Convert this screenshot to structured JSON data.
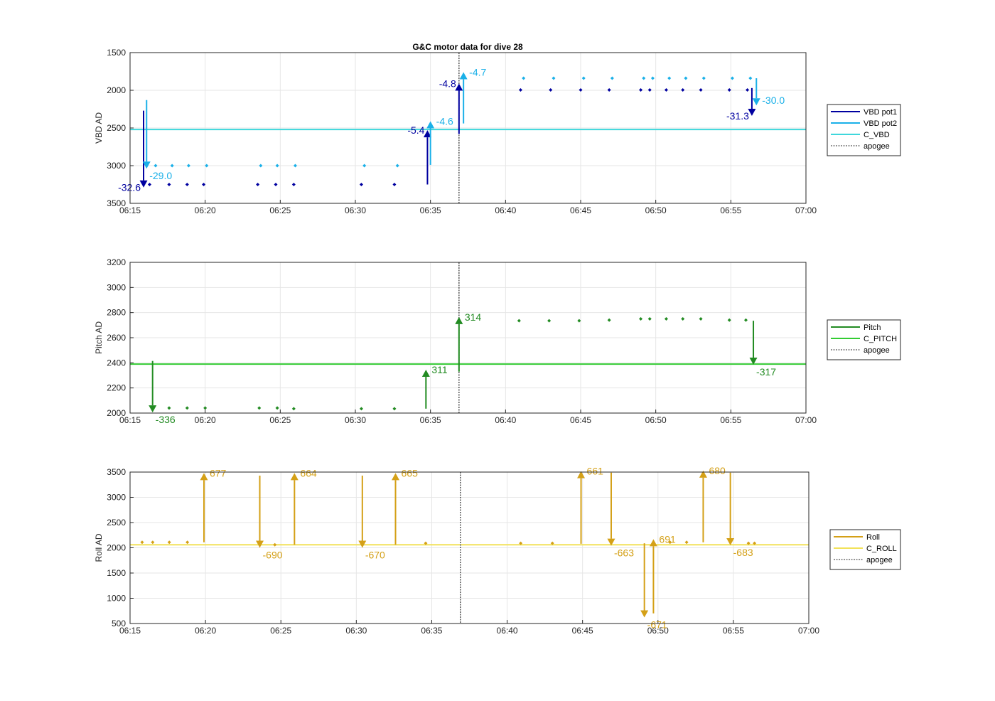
{
  "figure_title": "G&C motor data for dive 28",
  "colors": {
    "vbd_pot1": "#0000a0",
    "vbd_pot2": "#1ab0e8",
    "c_vbd": "#3fd7dc",
    "pitch": "#228b22",
    "c_pitch": "#33cc33",
    "roll": "#d4a017",
    "c_roll": "#f2e25a",
    "apogee": "#555555",
    "grid": "#e6e6e6"
  },
  "chart_data": [
    {
      "type": "line",
      "title": "G&C motor data for dive 28",
      "ylabel": "VBD AD",
      "xlabel": "",
      "ylim": [
        1500,
        3500
      ],
      "y_reversed": true,
      "yticks": [
        1500,
        2000,
        2500,
        3000,
        3500
      ],
      "xlim": [
        "06:15",
        "07:00"
      ],
      "xticks": [
        "06:15",
        "06:20",
        "06:25",
        "06:30",
        "06:35",
        "06:40",
        "06:45",
        "06:50",
        "06:55",
        "07:00"
      ],
      "grid": true,
      "legend_position": "right",
      "legend": [
        "VBD pot1",
        "VBD pot2",
        "C_VBD",
        "apogee"
      ],
      "apogee_time": "06:36.9",
      "series": [
        {
          "name": "VBD pot1",
          "style": "points",
          "color_key": "vbd_pot1",
          "x": [
            "06:16.3",
            "06:17.6",
            "06:18.8",
            "06:19.9",
            "06:23.5",
            "06:24.7",
            "06:25.9",
            "06:30.4",
            "06:32.6",
            "06:41.0",
            "06:43.0",
            "06:45.0",
            "06:46.9",
            "06:49.0",
            "06:49.6",
            "06:50.7",
            "06:51.8",
            "06:53.0",
            "06:54.9",
            "06:56.1"
          ],
          "y": [
            3250,
            3250,
            3250,
            3250,
            3250,
            3250,
            3250,
            3250,
            3250,
            1995,
            1995,
            1995,
            1995,
            1995,
            1995,
            1995,
            1995,
            1995,
            1995,
            1995
          ]
        },
        {
          "name": "VBD pot2",
          "style": "points",
          "color_key": "vbd_pot2",
          "x": [
            "06:16.7",
            "06:17.8",
            "06:18.9",
            "06:20.1",
            "06:23.7",
            "06:24.8",
            "06:26.0",
            "06:30.6",
            "06:32.8",
            "06:41.2",
            "06:43.2",
            "06:45.2",
            "06:47.1",
            "06:49.2",
            "06:49.8",
            "06:50.9",
            "06:52.0",
            "06:53.2",
            "06:55.1",
            "06:56.3"
          ],
          "y": [
            3000,
            3000,
            3000,
            3000,
            3000,
            3000,
            3000,
            3000,
            3000,
            1840,
            1840,
            1840,
            1840,
            1840,
            1840,
            1840,
            1840,
            1840,
            1840,
            1840
          ]
        },
        {
          "name": "C_VBD",
          "style": "hline",
          "color_key": "c_vbd",
          "y": 2520
        }
      ],
      "arrows": [
        {
          "series": "VBD pot1",
          "x": "06:15.9",
          "from": 2270,
          "to": 3290,
          "label": "-32.6",
          "label_pos": "left"
        },
        {
          "series": "VBD pot2",
          "x": "06:16.1",
          "from": 2130,
          "to": 3040,
          "label": "-29.0",
          "label_pos": "below"
        },
        {
          "series": "VBD pot1",
          "x": "06:34.8",
          "from": 3250,
          "to": 2530,
          "label": "-5.4",
          "label_pos": "left"
        },
        {
          "series": "VBD pot2",
          "x": "06:35.0",
          "from": 2990,
          "to": 2410,
          "label": "-4.6",
          "label_pos": "right"
        },
        {
          "series": "VBD pot1",
          "x": "06:36.9",
          "from": 2580,
          "to": 1910,
          "label": "-4.8",
          "label_pos": "left"
        },
        {
          "series": "VBD pot2",
          "x": "06:37.2",
          "from": 2440,
          "to": 1760,
          "label": "-4.7",
          "label_pos": "right"
        },
        {
          "series": "VBD pot1",
          "x": "06:56.4",
          "from": 1970,
          "to": 2340,
          "label": "-31.3",
          "label_pos": "left"
        },
        {
          "series": "VBD pot2",
          "x": "06:56.7",
          "from": 1840,
          "to": 2200,
          "label": "-30.0",
          "label_pos": "right"
        }
      ]
    },
    {
      "type": "line",
      "ylabel": "Pitch AD",
      "xlabel": "",
      "ylim": [
        2000,
        3200
      ],
      "yticks": [
        2000,
        2200,
        2400,
        2600,
        2800,
        3000,
        3200
      ],
      "xlim": [
        "06:15",
        "07:00"
      ],
      "xticks": [
        "06:15",
        "06:20",
        "06:25",
        "06:30",
        "06:35",
        "06:40",
        "06:45",
        "06:50",
        "06:55",
        "07:00"
      ],
      "grid": true,
      "legend_position": "right",
      "legend": [
        "Pitch",
        "C_PITCH",
        "apogee"
      ],
      "apogee_time": "06:36.9",
      "series": [
        {
          "name": "Pitch",
          "style": "points",
          "color_key": "pitch",
          "x": [
            "06:17.6",
            "06:18.8",
            "06:20.0",
            "06:23.6",
            "06:24.8",
            "06:25.9",
            "06:30.4",
            "06:32.6",
            "06:40.9",
            "06:42.9",
            "06:44.9",
            "06:46.9",
            "06:49.0",
            "06:49.6",
            "06:50.7",
            "06:51.8",
            "06:53.0",
            "06:54.9",
            "06:56.0"
          ],
          "y": [
            2040,
            2040,
            2040,
            2040,
            2040,
            2035,
            2035,
            2035,
            2735,
            2735,
            2735,
            2740,
            2750,
            2750,
            2750,
            2750,
            2750,
            2740,
            2740
          ]
        },
        {
          "name": "C_PITCH",
          "style": "hline",
          "color_key": "c_pitch",
          "y": 2390
        }
      ],
      "arrows": [
        {
          "series": "Pitch",
          "x": "06:16.5",
          "from": 2415,
          "to": 2005,
          "label": "-336",
          "label_pos": "below"
        },
        {
          "series": "Pitch",
          "x": "06:34.7",
          "from": 2035,
          "to": 2345,
          "label": "311",
          "label_pos": "right"
        },
        {
          "series": "Pitch",
          "x": "06:36.9",
          "from": 2330,
          "to": 2765,
          "label": "314",
          "label_pos": "right"
        },
        {
          "series": "Pitch",
          "x": "06:56.5",
          "from": 2735,
          "to": 2385,
          "label": "-317",
          "label_pos": "below"
        }
      ]
    },
    {
      "type": "line",
      "ylabel": "Roll AD",
      "xlabel": "",
      "ylim": [
        500,
        3500
      ],
      "yticks": [
        500,
        1000,
        1500,
        2000,
        2500,
        3000,
        3500
      ],
      "xlim": [
        "06:15",
        "07:00"
      ],
      "xticks": [
        "06:15",
        "06:20",
        "06:25",
        "06:30",
        "06:35",
        "06:40",
        "06:45",
        "06:50",
        "06:55",
        "07:00"
      ],
      "grid": true,
      "legend_position": "right",
      "legend": [
        "Roll",
        "C_ROLL",
        "apogee"
      ],
      "apogee_time": "06:36.9",
      "series": [
        {
          "name": "Roll",
          "style": "points",
          "color_key": "roll",
          "x": [
            "06:15.8",
            "06:16.5",
            "06:17.6",
            "06:18.8",
            "06:24.6",
            "06:34.6",
            "06:40.9",
            "06:43.0",
            "06:50.8",
            "06:51.9",
            "06:56.0",
            "06:56.4"
          ],
          "y": [
            2110,
            2110,
            2110,
            2110,
            2060,
            2090,
            2090,
            2090,
            2110,
            2110,
            2090,
            2090
          ]
        },
        {
          "name": "C_ROLL",
          "style": "hline",
          "color_key": "c_roll",
          "y": 2060
        }
      ],
      "arrows": [
        {
          "series": "Roll",
          "x": "06:19.9",
          "from": 2110,
          "to": 3480,
          "label": "677",
          "label_pos": "right"
        },
        {
          "series": "Roll",
          "x": "06:23.6",
          "from": 3430,
          "to": 2000,
          "label": "-690",
          "label_pos": "below"
        },
        {
          "series": "Roll",
          "x": "06:25.9",
          "from": 2060,
          "to": 3480,
          "label": "664",
          "label_pos": "right"
        },
        {
          "series": "Roll",
          "x": "06:30.4",
          "from": 3430,
          "to": 2000,
          "label": "-670",
          "label_pos": "below"
        },
        {
          "series": "Roll",
          "x": "06:32.6",
          "from": 2060,
          "to": 3480,
          "label": "665",
          "label_pos": "right"
        },
        {
          "series": "Roll",
          "x": "06:44.9",
          "from": 2080,
          "to": 3520,
          "label": "661",
          "label_pos": "right"
        },
        {
          "series": "Roll",
          "x": "06:46.9",
          "from": 3490,
          "to": 2040,
          "label": "-663",
          "label_pos": "below"
        },
        {
          "series": "Roll",
          "x": "06:49.1",
          "from": 2090,
          "to": 620,
          "label": "-671",
          "label_pos": "below"
        },
        {
          "series": "Roll",
          "x": "06:49.7",
          "from": 700,
          "to": 2170,
          "label": "691",
          "label_pos": "right"
        },
        {
          "series": "Roll",
          "x": "06:53.0",
          "from": 2110,
          "to": 3530,
          "label": "680",
          "label_pos": "right"
        },
        {
          "series": "Roll",
          "x": "06:54.8",
          "from": 3490,
          "to": 2050,
          "label": "-683",
          "label_pos": "below"
        }
      ]
    }
  ]
}
